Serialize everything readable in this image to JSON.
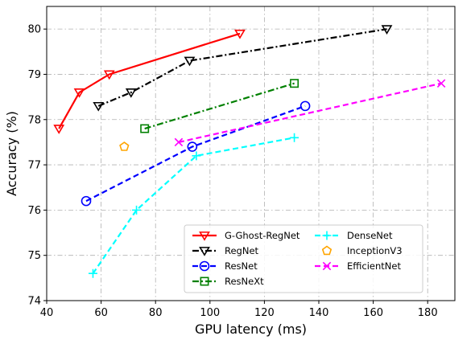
{
  "chart_data": {
    "type": "line",
    "xlabel": "GPU latency (ms)",
    "ylabel": "Accuracy (%)",
    "xlim": [
      40,
      190
    ],
    "ylim": [
      74,
      80.5
    ],
    "xticks": [
      40,
      60,
      80,
      100,
      120,
      140,
      160,
      180
    ],
    "yticks": [
      74,
      75,
      76,
      77,
      78,
      79,
      80
    ],
    "grid": true,
    "legend_position": "lower-right",
    "series": [
      {
        "name": "G-Ghost-RegNet",
        "color": "#ff0000",
        "linestyle": "solid",
        "marker": "triangle-down",
        "x": [
          44.5,
          52,
          63,
          111
        ],
        "y": [
          77.8,
          78.6,
          79.0,
          79.9
        ]
      },
      {
        "name": "RegNet",
        "color": "#000000",
        "linestyle": "dashdot",
        "marker": "triangle-down",
        "x": [
          59,
          71,
          92.5,
          165
        ],
        "y": [
          78.3,
          78.6,
          79.3,
          80.0
        ]
      },
      {
        "name": "ResNet",
        "color": "#0000ff",
        "linestyle": "dashed",
        "marker": "circle",
        "x": [
          54.5,
          93.5,
          135
        ],
        "y": [
          76.2,
          77.4,
          78.3
        ]
      },
      {
        "name": "ResNeXt",
        "color": "#008000",
        "linestyle": "dashdot",
        "marker": "square",
        "x": [
          76,
          131
        ],
        "y": [
          77.8,
          78.8
        ]
      },
      {
        "name": "DenseNet",
        "color": "#00ffff",
        "linestyle": "dashed",
        "marker": "plus",
        "x": [
          57,
          73,
          95,
          131
        ],
        "y": [
          74.6,
          76.0,
          77.2,
          77.6
        ]
      },
      {
        "name": "InceptionV3",
        "color": "#ffa500",
        "linestyle": "none",
        "marker": "pentagon",
        "x": [
          68.5
        ],
        "y": [
          77.4
        ]
      },
      {
        "name": "EfficientNet",
        "color": "#ff00ff",
        "linestyle": "dashed",
        "marker": "x",
        "x": [
          88.5,
          185
        ],
        "y": [
          77.5,
          78.8
        ]
      }
    ]
  }
}
